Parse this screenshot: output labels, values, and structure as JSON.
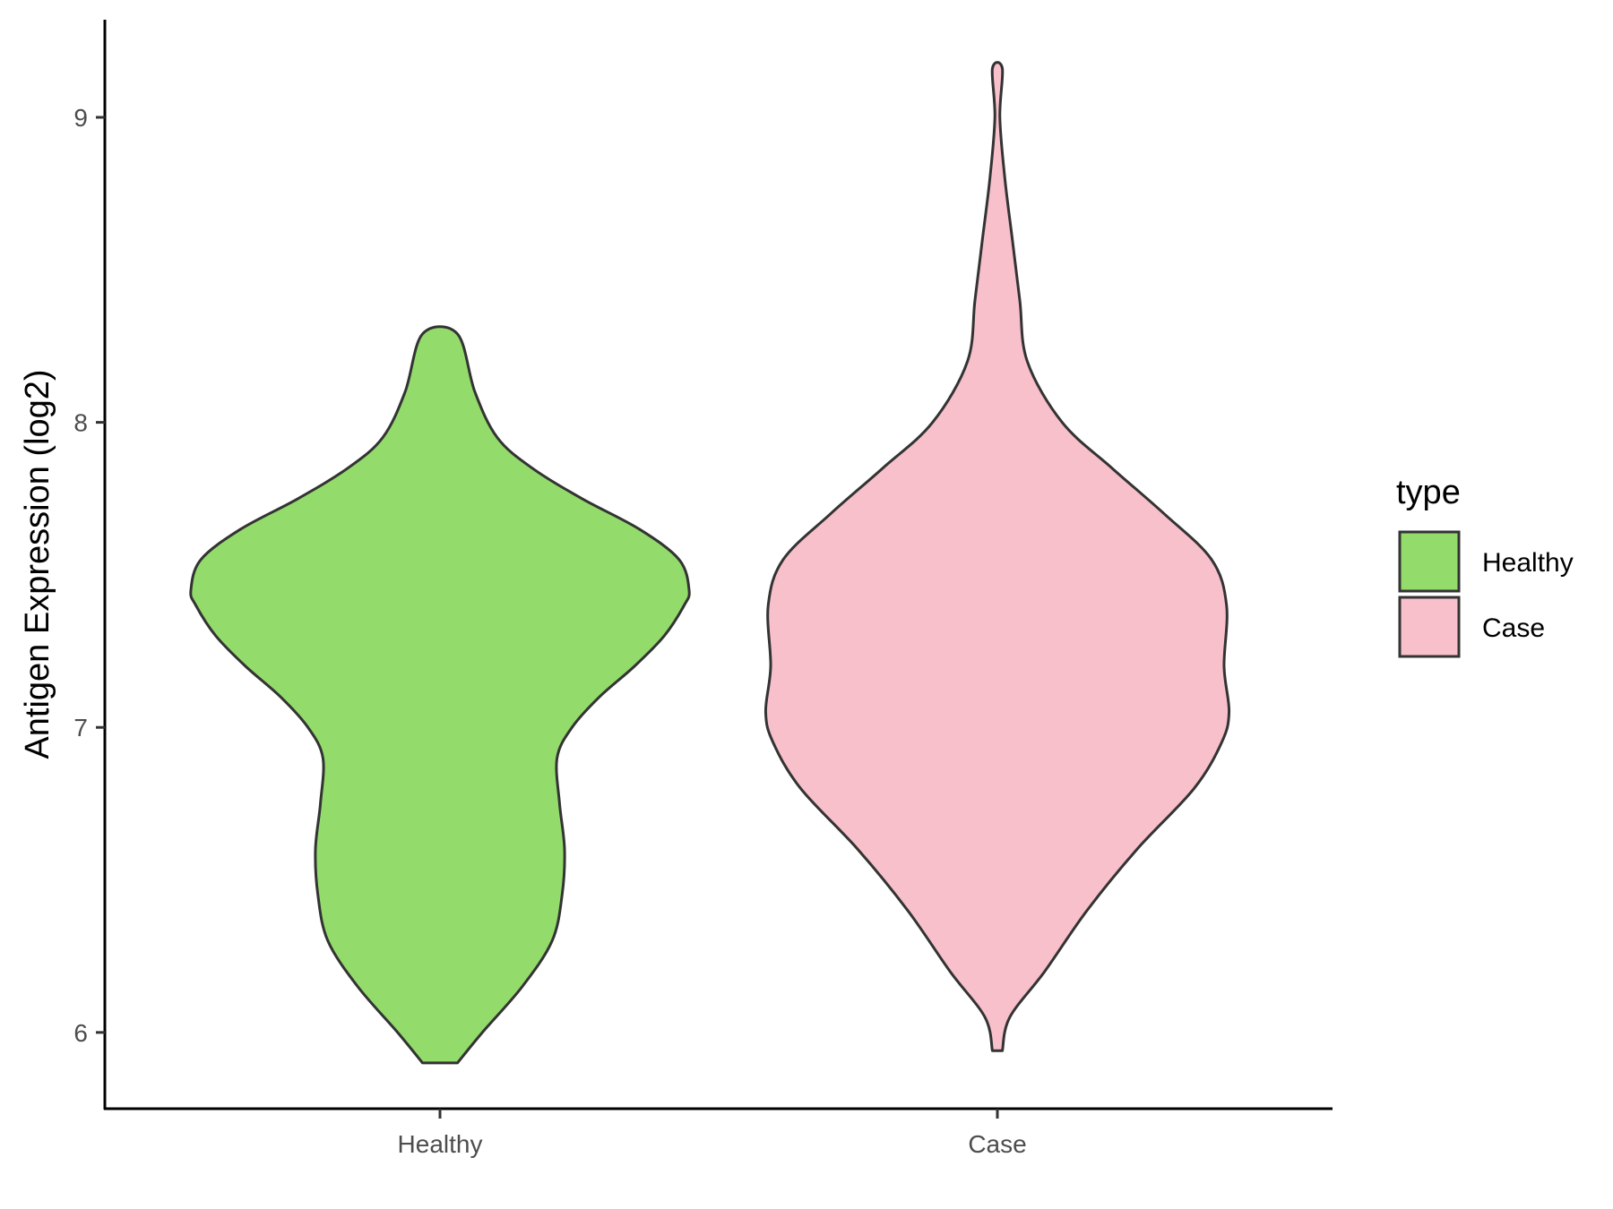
{
  "chart_data": {
    "type": "violin",
    "title": "",
    "xlabel": "",
    "ylabel": "Antigen Expression (log2)",
    "categories": [
      "Healthy",
      "Case"
    ],
    "ylim": [
      5.75,
      9.32
    ],
    "yticks": [
      6,
      7,
      8,
      9
    ],
    "grid": false,
    "legend": {
      "title": "type",
      "position": "right",
      "entries": [
        {
          "label": "Healthy",
          "color": "#93DC6B"
        },
        {
          "label": "Case",
          "color": "#F7C0CB"
        }
      ]
    },
    "series": [
      {
        "name": "Healthy",
        "color": "#93DC6B",
        "min": 5.9,
        "max": 8.29,
        "density_profile": [
          [
            5.9,
            0.07
          ],
          [
            6.0,
            0.17
          ],
          [
            6.15,
            0.33
          ],
          [
            6.3,
            0.45
          ],
          [
            6.45,
            0.49
          ],
          [
            6.6,
            0.5
          ],
          [
            6.75,
            0.48
          ],
          [
            6.9,
            0.47
          ],
          [
            7.0,
            0.53
          ],
          [
            7.1,
            0.64
          ],
          [
            7.2,
            0.78
          ],
          [
            7.3,
            0.9
          ],
          [
            7.4,
            0.98
          ],
          [
            7.45,
            1.0
          ],
          [
            7.55,
            0.96
          ],
          [
            7.65,
            0.8
          ],
          [
            7.75,
            0.57
          ],
          [
            7.85,
            0.37
          ],
          [
            7.95,
            0.23
          ],
          [
            8.1,
            0.14
          ],
          [
            8.29,
            0.07
          ]
        ]
      },
      {
        "name": "Case",
        "color": "#F7C0CB",
        "min": 5.94,
        "max": 9.16,
        "density_profile": [
          [
            5.94,
            0.02
          ],
          [
            6.05,
            0.05
          ],
          [
            6.2,
            0.19
          ],
          [
            6.4,
            0.36
          ],
          [
            6.6,
            0.56
          ],
          [
            6.8,
            0.79
          ],
          [
            6.95,
            0.9
          ],
          [
            7.05,
            0.93
          ],
          [
            7.2,
            0.91
          ],
          [
            7.4,
            0.92
          ],
          [
            7.55,
            0.86
          ],
          [
            7.7,
            0.67
          ],
          [
            7.85,
            0.46
          ],
          [
            8.0,
            0.26
          ],
          [
            8.2,
            0.12
          ],
          [
            8.4,
            0.09
          ],
          [
            8.6,
            0.06
          ],
          [
            8.8,
            0.03
          ],
          [
            9.0,
            0.01
          ],
          [
            9.16,
            0.02
          ]
        ]
      }
    ]
  }
}
